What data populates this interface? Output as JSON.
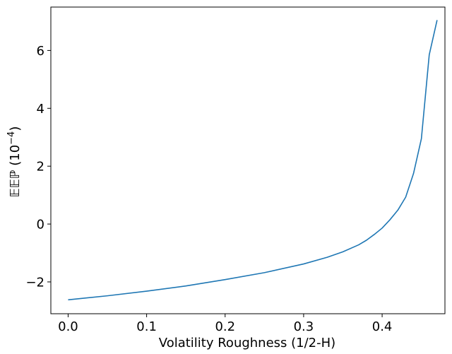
{
  "chart_data": {
    "type": "line",
    "title": "",
    "xlabel": "Volatility Roughness (1/2-H)",
    "ylabel": {
      "main": "𝔼𝔼ℙ (10",
      "sup": "−4",
      "close": ")"
    },
    "xlim": [
      -0.022,
      0.48
    ],
    "ylim": [
      -3.1,
      7.5
    ],
    "xticks": [
      0.0,
      0.1,
      0.2,
      0.3,
      0.4
    ],
    "xtick_labels": [
      "0.0",
      "0.1",
      "0.2",
      "0.3",
      "0.4"
    ],
    "yticks": [
      -2,
      0,
      2,
      4,
      6
    ],
    "ytick_labels": [
      "−2",
      "0",
      "2",
      "4",
      "6"
    ],
    "grid": false,
    "series": [
      {
        "color": "#1f77b4",
        "x": [
          0.0,
          0.05,
          0.1,
          0.15,
          0.2,
          0.25,
          0.3,
          0.33,
          0.35,
          0.37,
          0.38,
          0.39,
          0.4,
          0.41,
          0.42,
          0.43,
          0.44,
          0.45,
          0.46,
          0.47
        ],
        "y": [
          -2.62,
          -2.48,
          -2.32,
          -2.14,
          -1.92,
          -1.68,
          -1.38,
          -1.15,
          -0.96,
          -0.72,
          -0.56,
          -0.36,
          -0.14,
          0.15,
          0.48,
          0.93,
          1.75,
          2.95,
          5.85,
          7.05
        ]
      }
    ]
  }
}
